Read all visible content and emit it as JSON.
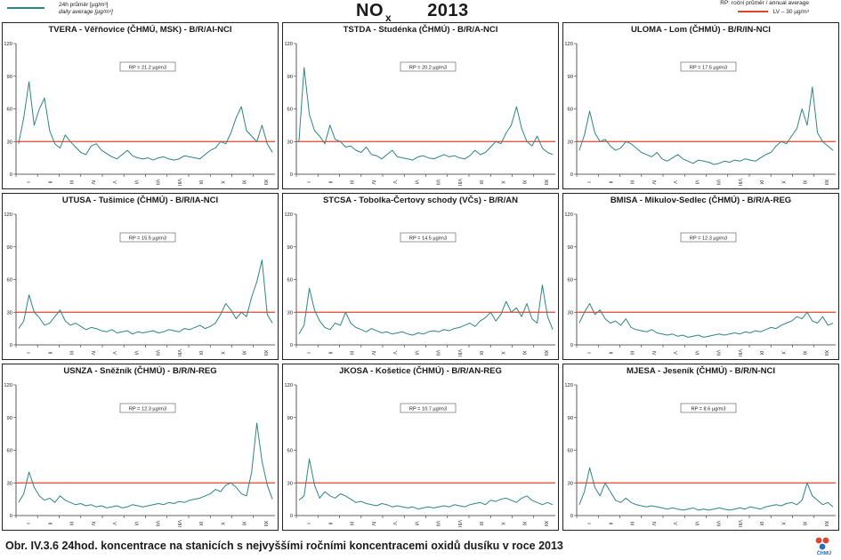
{
  "header": {
    "legend_series_cz": "24h průměr [µg/m³]",
    "legend_series_en": "daily average [µg/m³]",
    "legend_rp": "RP: roční průměr / annual average",
    "legend_lv": "LV – 30 µg/m³",
    "title_main": "NO",
    "title_sub": "x",
    "title_year": "2013"
  },
  "colors": {
    "series": "#2e8583",
    "limit": "#e0442c",
    "axis": "#333333",
    "frame": "#222222"
  },
  "caption": "Obr. IV.3.6  24hod. koncentrace na stanicích s nejvyššími ročními koncentracemi oxidů dusíku v roce 2013",
  "logo": {
    "text": "ČHMÚ",
    "icon": "chmu-logo-icon"
  },
  "chart_data": [
    {
      "type": "line",
      "title": "TVERA - Věřňovice (ČHMÚ, MSK) - B/R/AI-NCI",
      "rp_label": "RP = 21.2 µg/m3",
      "y_ticks": [
        "0",
        "30",
        "60",
        "90",
        "120"
      ],
      "ylim": [
        0,
        120
      ],
      "x_ticks": [
        "I",
        "II",
        "III",
        "IV",
        "V",
        "VI",
        "VII",
        "VIII",
        "IX",
        "X",
        "XI",
        "XII"
      ],
      "limit_value": 30,
      "series": [
        {
          "values": [
            28,
            52,
            85,
            45,
            60,
            70,
            40,
            28,
            24,
            36,
            30,
            25,
            20,
            18,
            26,
            28,
            22,
            19,
            16,
            14,
            18,
            22,
            17,
            15,
            14,
            15,
            13,
            15,
            16,
            14,
            13,
            14,
            17,
            16,
            15,
            14,
            18,
            22,
            24,
            30,
            28,
            38,
            52,
            62,
            40,
            35,
            30,
            45,
            28,
            20
          ]
        }
      ]
    },
    {
      "type": "line",
      "title": "TSTDA - Studénka (ČHMÚ) - B/R/A-NCI",
      "rp_label": "RP = 20.2 µg/m3",
      "y_ticks": [
        "0",
        "30",
        "60",
        "90",
        "120"
      ],
      "ylim": [
        0,
        120
      ],
      "x_ticks": [
        "I",
        "II",
        "III",
        "IV",
        "V",
        "VI",
        "VII",
        "VIII",
        "IX",
        "X",
        "XI",
        "XII"
      ],
      "limit_value": 30,
      "series": [
        {
          "values": [
            30,
            98,
            55,
            40,
            35,
            28,
            45,
            32,
            30,
            25,
            26,
            22,
            20,
            25,
            18,
            17,
            14,
            18,
            22,
            16,
            15,
            14,
            13,
            16,
            17,
            15,
            14,
            16,
            18,
            16,
            17,
            15,
            14,
            17,
            22,
            18,
            20,
            25,
            30,
            28,
            38,
            45,
            62,
            42,
            30,
            26,
            35,
            24,
            20,
            18
          ]
        }
      ]
    },
    {
      "type": "line",
      "title": "ULOMA - Lom (ČHMÚ) - B/R/IN-NCI",
      "rp_label": "RP = 17.5 µg/m3",
      "y_ticks": [
        "0",
        "30",
        "60",
        "90",
        "120"
      ],
      "ylim": [
        0,
        120
      ],
      "x_ticks": [
        "I",
        "II",
        "III",
        "IV",
        "V",
        "VI",
        "VII",
        "VIII",
        "IX",
        "X",
        "XI",
        "XII"
      ],
      "limit_value": 30,
      "series": [
        {
          "values": [
            22,
            36,
            58,
            38,
            30,
            32,
            26,
            22,
            24,
            30,
            28,
            24,
            20,
            18,
            16,
            20,
            14,
            12,
            15,
            18,
            14,
            12,
            10,
            13,
            12,
            11,
            9,
            10,
            12,
            11,
            13,
            12,
            14,
            13,
            12,
            15,
            18,
            20,
            26,
            30,
            28,
            35,
            42,
            60,
            45,
            80,
            38,
            30,
            26,
            22
          ]
        }
      ]
    },
    {
      "type": "line",
      "title": "UTUSA - Tušimice (ČHMÚ) - B/R/IA-NCI",
      "rp_label": "RP = 15.5 µg/m3",
      "y_ticks": [
        "0",
        "30",
        "60",
        "90",
        "120"
      ],
      "ylim": [
        0,
        120
      ],
      "x_ticks": [
        "I",
        "II",
        "III",
        "IV",
        "V",
        "VI",
        "VII",
        "VIII",
        "IX",
        "X",
        "XI",
        "XII"
      ],
      "limit_value": 30,
      "series": [
        {
          "values": [
            15,
            22,
            46,
            30,
            25,
            18,
            20,
            26,
            32,
            22,
            18,
            20,
            17,
            14,
            16,
            15,
            13,
            12,
            14,
            11,
            12,
            13,
            10,
            12,
            11,
            12,
            13,
            11,
            12,
            14,
            13,
            12,
            15,
            14,
            16,
            18,
            15,
            17,
            20,
            28,
            38,
            32,
            24,
            30,
            26,
            44,
            58,
            78,
            28,
            20
          ]
        }
      ]
    },
    {
      "type": "line",
      "title": "STCSA - Tobolka-Čertovy schody (VČs) - B/R/AN",
      "rp_label": "RP = 14.5 µg/m3",
      "y_ticks": [
        "0",
        "30",
        "60",
        "90",
        "120"
      ],
      "ylim": [
        0,
        120
      ],
      "x_ticks": [
        "I",
        "II",
        "III",
        "IV",
        "V",
        "VI",
        "VII",
        "VIII",
        "IX",
        "X",
        "XI",
        "XII"
      ],
      "limit_value": 30,
      "series": [
        {
          "values": [
            10,
            18,
            52,
            32,
            22,
            16,
            14,
            20,
            18,
            30,
            20,
            16,
            14,
            12,
            15,
            13,
            11,
            12,
            10,
            11,
            12,
            10,
            9,
            11,
            10,
            12,
            13,
            12,
            14,
            13,
            15,
            16,
            18,
            20,
            17,
            22,
            25,
            30,
            22,
            28,
            40,
            30,
            34,
            26,
            38,
            24,
            20,
            55,
            26,
            14
          ]
        }
      ]
    },
    {
      "type": "line",
      "title": "BMISA - Mikulov-Sedlec (ČHMÚ) - B/R/A-REG",
      "rp_label": "RP = 12.3 µg/m3",
      "y_ticks": [
        "0",
        "30",
        "60",
        "90",
        "120"
      ],
      "ylim": [
        0,
        120
      ],
      "x_ticks": [
        "I",
        "II",
        "III",
        "IV",
        "V",
        "VI",
        "VII",
        "VIII",
        "IX",
        "X",
        "XI",
        "XII"
      ],
      "limit_value": 30,
      "series": [
        {
          "values": [
            20,
            30,
            38,
            28,
            32,
            24,
            20,
            22,
            18,
            24,
            16,
            14,
            13,
            12,
            14,
            11,
            10,
            9,
            10,
            8,
            9,
            7,
            8,
            9,
            7,
            8,
            9,
            10,
            9,
            10,
            11,
            10,
            12,
            11,
            13,
            12,
            14,
            16,
            15,
            18,
            20,
            22,
            26,
            24,
            30,
            22,
            20,
            26,
            18,
            20
          ]
        }
      ]
    },
    {
      "type": "line",
      "title": "USNZA - Sněžník (ČHMÚ) - B/R/N-REG",
      "rp_label": "RP = 12.3 µg/m3",
      "y_ticks": [
        "0",
        "30",
        "60",
        "90",
        "120"
      ],
      "ylim": [
        0,
        120
      ],
      "x_ticks": [
        "I",
        "II",
        "III",
        "IV",
        "V",
        "VI",
        "VII",
        "VIII",
        "IX",
        "X",
        "XI",
        "XII"
      ],
      "limit_value": 30,
      "series": [
        {
          "values": [
            12,
            20,
            40,
            26,
            18,
            14,
            16,
            12,
            18,
            14,
            12,
            10,
            11,
            9,
            10,
            8,
            9,
            7,
            8,
            9,
            7,
            8,
            10,
            9,
            8,
            9,
            10,
            11,
            10,
            12,
            11,
            13,
            12,
            14,
            15,
            16,
            18,
            20,
            24,
            22,
            28,
            30,
            26,
            20,
            18,
            40,
            85,
            50,
            28,
            15
          ]
        }
      ]
    },
    {
      "type": "line",
      "title": "JKOSA - Košetice (ČHMÚ) - B/R/AN-REG",
      "rp_label": "RP = 10.7 µg/m3",
      "y_ticks": [
        "0",
        "30",
        "60",
        "90",
        "120"
      ],
      "ylim": [
        0,
        120
      ],
      "x_ticks": [
        "I",
        "II",
        "III",
        "IV",
        "V",
        "VI",
        "VII",
        "VIII",
        "IX",
        "X",
        "XI",
        "XII"
      ],
      "limit_value": 30,
      "series": [
        {
          "values": [
            14,
            18,
            52,
            28,
            16,
            22,
            18,
            16,
            20,
            18,
            15,
            12,
            13,
            11,
            10,
            9,
            11,
            10,
            8,
            9,
            8,
            7,
            8,
            6,
            7,
            8,
            7,
            8,
            9,
            8,
            10,
            9,
            8,
            10,
            11,
            12,
            10,
            14,
            13,
            15,
            16,
            14,
            12,
            16,
            18,
            14,
            12,
            10,
            12,
            10
          ]
        }
      ]
    },
    {
      "type": "line",
      "title": "MJESA - Jeseník (ČHMÚ) - B/R/N-NCI",
      "rp_label": "RP = 8.6 µg/m3",
      "y_ticks": [
        "0",
        "30",
        "60",
        "90",
        "120"
      ],
      "ylim": [
        0,
        120
      ],
      "x_ticks": [
        "I",
        "II",
        "III",
        "IV",
        "V",
        "VI",
        "VII",
        "VIII",
        "IX",
        "X",
        "XI",
        "XII"
      ],
      "limit_value": 30,
      "series": [
        {
          "values": [
            10,
            22,
            44,
            26,
            18,
            30,
            22,
            14,
            12,
            16,
            12,
            10,
            9,
            8,
            9,
            8,
            7,
            6,
            7,
            6,
            5,
            6,
            7,
            5,
            6,
            5,
            6,
            7,
            6,
            5,
            6,
            7,
            6,
            8,
            7,
            6,
            8,
            9,
            10,
            9,
            11,
            12,
            10,
            14,
            30,
            18,
            14,
            10,
            12,
            8
          ]
        }
      ]
    }
  ]
}
